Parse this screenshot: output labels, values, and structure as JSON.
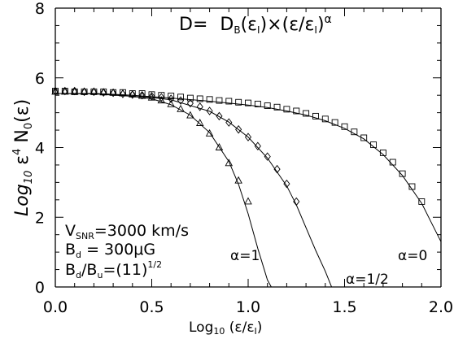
{
  "chart_data": {
    "type": "scatter",
    "title": "D= D_B(ε_I)×(ε/ε_I)^α",
    "title_parts": {
      "lhs": "D=",
      "d": "D",
      "b_sub": "B",
      "arg": "(ε",
      "i_sub": "I",
      "times": ")×(ε/ε",
      "close": ")",
      "alpha": "α"
    },
    "xlabel": {
      "main": "Log",
      "sub": "10",
      "rest": " (ε/ε",
      "sub2": "I",
      "end": ")"
    },
    "ylabel": {
      "main": "Log",
      "sub": "10",
      "rest": " ε",
      "sup": "4",
      "tail": " N",
      "sub2": "0",
      "end": "(ε)"
    },
    "xlim": [
      0.0,
      2.0
    ],
    "ylim": [
      0,
      8
    ],
    "x_ticks": [
      {
        "value": 0.0,
        "label": "0.0"
      },
      {
        "value": 0.5,
        "label": "0.5"
      },
      {
        "value": 1.0,
        "label": "1.0"
      },
      {
        "value": 1.5,
        "label": "1.5"
      },
      {
        "value": 2.0,
        "label": "2.0"
      }
    ],
    "y_ticks": [
      {
        "value": 0,
        "label": "0"
      },
      {
        "value": 2,
        "label": "2"
      },
      {
        "value": 4,
        "label": "4"
      },
      {
        "value": 6,
        "label": "6"
      },
      {
        "value": 8,
        "label": "8"
      }
    ],
    "x_minor_step": 0.1,
    "y_minor_step": 0.5,
    "grid": false,
    "series": [
      {
        "label": "α=1",
        "marker": "triangle",
        "points": [
          [
            0.0,
            5.6
          ],
          [
            0.05,
            5.6
          ],
          [
            0.1,
            5.6
          ],
          [
            0.15,
            5.6
          ],
          [
            0.2,
            5.6
          ],
          [
            0.25,
            5.58
          ],
          [
            0.3,
            5.57
          ],
          [
            0.35,
            5.55
          ],
          [
            0.4,
            5.52
          ],
          [
            0.45,
            5.48
          ],
          [
            0.5,
            5.43
          ],
          [
            0.55,
            5.35
          ],
          [
            0.6,
            5.24
          ],
          [
            0.65,
            5.1
          ],
          [
            0.7,
            4.92
          ],
          [
            0.75,
            4.7
          ],
          [
            0.8,
            4.4
          ],
          [
            0.85,
            4.0
          ],
          [
            0.9,
            3.55
          ],
          [
            0.95,
            3.05
          ],
          [
            1.0,
            2.45
          ]
        ],
        "curve": [
          [
            0.0,
            5.55
          ],
          [
            0.2,
            5.54
          ],
          [
            0.4,
            5.47
          ],
          [
            0.5,
            5.4
          ],
          [
            0.6,
            5.23
          ],
          [
            0.7,
            4.93
          ],
          [
            0.8,
            4.43
          ],
          [
            0.9,
            3.6
          ],
          [
            0.95,
            2.95
          ],
          [
            1.0,
            2.1
          ],
          [
            1.05,
            1.1
          ],
          [
            1.1,
            0.2
          ],
          [
            1.13,
            -0.1
          ]
        ]
      },
      {
        "label": "α=1/2",
        "marker": "diamond",
        "points": [
          [
            0.0,
            5.62
          ],
          [
            0.05,
            5.62
          ],
          [
            0.1,
            5.62
          ],
          [
            0.15,
            5.6
          ],
          [
            0.2,
            5.6
          ],
          [
            0.25,
            5.58
          ],
          [
            0.3,
            5.57
          ],
          [
            0.35,
            5.54
          ],
          [
            0.4,
            5.52
          ],
          [
            0.45,
            5.5
          ],
          [
            0.5,
            5.47
          ],
          [
            0.55,
            5.44
          ],
          [
            0.6,
            5.4
          ],
          [
            0.65,
            5.35
          ],
          [
            0.7,
            5.27
          ],
          [
            0.75,
            5.17
          ],
          [
            0.8,
            5.05
          ],
          [
            0.85,
            4.9
          ],
          [
            0.9,
            4.72
          ],
          [
            0.95,
            4.52
          ],
          [
            1.0,
            4.3
          ],
          [
            1.05,
            4.04
          ],
          [
            1.1,
            3.74
          ],
          [
            1.15,
            3.38
          ],
          [
            1.2,
            2.96
          ],
          [
            1.25,
            2.45
          ]
        ],
        "curve": [
          [
            0.0,
            5.55
          ],
          [
            0.2,
            5.55
          ],
          [
            0.4,
            5.5
          ],
          [
            0.6,
            5.37
          ],
          [
            0.8,
            5.04
          ],
          [
            0.9,
            4.73
          ],
          [
            1.0,
            4.3
          ],
          [
            1.1,
            3.7
          ],
          [
            1.2,
            2.9
          ],
          [
            1.25,
            2.35
          ],
          [
            1.3,
            1.7
          ],
          [
            1.35,
            1.05
          ],
          [
            1.4,
            0.45
          ],
          [
            1.44,
            -0.1
          ]
        ]
      },
      {
        "label": "α=0",
        "marker": "square",
        "points": [
          [
            0.0,
            5.62
          ],
          [
            0.05,
            5.62
          ],
          [
            0.1,
            5.6
          ],
          [
            0.15,
            5.6
          ],
          [
            0.2,
            5.6
          ],
          [
            0.25,
            5.6
          ],
          [
            0.3,
            5.58
          ],
          [
            0.35,
            5.58
          ],
          [
            0.4,
            5.55
          ],
          [
            0.45,
            5.55
          ],
          [
            0.5,
            5.52
          ],
          [
            0.55,
            5.5
          ],
          [
            0.6,
            5.48
          ],
          [
            0.65,
            5.45
          ],
          [
            0.7,
            5.42
          ],
          [
            0.75,
            5.4
          ],
          [
            0.8,
            5.38
          ],
          [
            0.85,
            5.35
          ],
          [
            0.9,
            5.33
          ],
          [
            0.95,
            5.3
          ],
          [
            1.0,
            5.28
          ],
          [
            1.05,
            5.25
          ],
          [
            1.1,
            5.2
          ],
          [
            1.15,
            5.16
          ],
          [
            1.2,
            5.1
          ],
          [
            1.25,
            5.05
          ],
          [
            1.3,
            4.98
          ],
          [
            1.35,
            4.9
          ],
          [
            1.4,
            4.82
          ],
          [
            1.45,
            4.72
          ],
          [
            1.5,
            4.6
          ],
          [
            1.55,
            4.45
          ],
          [
            1.6,
            4.28
          ],
          [
            1.65,
            4.08
          ],
          [
            1.7,
            3.85
          ],
          [
            1.75,
            3.58
          ],
          [
            1.8,
            3.25
          ],
          [
            1.85,
            2.88
          ],
          [
            1.9,
            2.45
          ]
        ],
        "curve": [
          [
            0.0,
            5.55
          ],
          [
            0.2,
            5.55
          ],
          [
            0.4,
            5.5
          ],
          [
            0.6,
            5.42
          ],
          [
            0.8,
            5.33
          ],
          [
            1.0,
            5.22
          ],
          [
            1.1,
            5.15
          ],
          [
            1.2,
            5.05
          ],
          [
            1.3,
            4.93
          ],
          [
            1.4,
            4.77
          ],
          [
            1.5,
            4.55
          ],
          [
            1.6,
            4.25
          ],
          [
            1.7,
            3.8
          ],
          [
            1.8,
            3.2
          ],
          [
            1.9,
            2.4
          ],
          [
            1.95,
            1.85
          ],
          [
            2.0,
            1.3
          ]
        ]
      }
    ],
    "annotations": {
      "alpha1": "α=1",
      "alpha_half": "α=1/2",
      "alpha0": "α=0"
    },
    "params": {
      "vsnr_main": "V",
      "vsnr_sub": "SNR",
      "vsnr_rest": "=3000 km/s",
      "bd_main": "B",
      "bd_sub": "d",
      "bd_rest": " = 300μG",
      "ratio_b1": "B",
      "ratio_sub1": "d",
      "ratio_slash": "/B",
      "ratio_sub2": "u",
      "ratio_rest": "=(11)",
      "ratio_sup": "1/2"
    }
  }
}
